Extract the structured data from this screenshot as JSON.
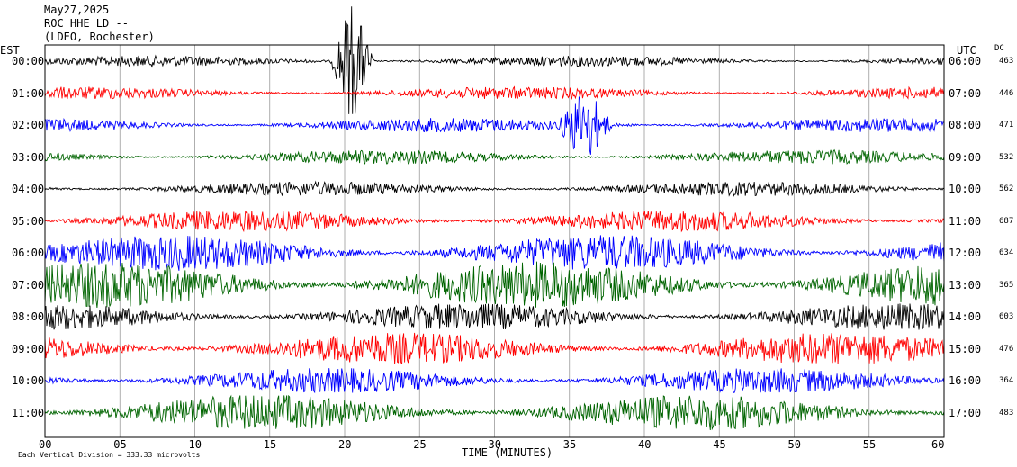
{
  "header": {
    "date": "May27,2025",
    "station": "ROC HHE LD --",
    "network": "(LDEO, Rochester)"
  },
  "left_label": "EST",
  "right_label": "UTC",
  "dc_label": "DC",
  "colors": {
    "cycle": [
      "#000000",
      "#ff0000",
      "#0000ff",
      "#006400"
    ]
  },
  "chart_data": {
    "type": "line",
    "xlabel": "TIME (MINUTES)",
    "xlim": [
      0,
      60
    ],
    "x_ticks": [
      "00",
      "05",
      "10",
      "15",
      "20",
      "25",
      "30",
      "35",
      "40",
      "45",
      "50",
      "55",
      "60"
    ],
    "footer_note": "Each Vertical Division = 333.33 microvolts",
    "rows": [
      {
        "est": "00:00",
        "utc": "06:00",
        "dc": "463",
        "amplitude": 6
      },
      {
        "est": "01:00",
        "utc": "07:00",
        "dc": "446",
        "amplitude": 7
      },
      {
        "est": "02:00",
        "utc": "08:00",
        "dc": "471",
        "amplitude": 8
      },
      {
        "est": "03:00",
        "utc": "09:00",
        "dc": "532",
        "amplitude": 8
      },
      {
        "est": "04:00",
        "utc": "10:00",
        "dc": "562",
        "amplitude": 8
      },
      {
        "est": "05:00",
        "utc": "11:00",
        "dc": "687",
        "amplitude": 12
      },
      {
        "est": "06:00",
        "utc": "12:00",
        "dc": "634",
        "amplitude": 20
      },
      {
        "est": "07:00",
        "utc": "13:00",
        "dc": "365",
        "amplitude": 26
      },
      {
        "est": "08:00",
        "utc": "14:00",
        "dc": "603",
        "amplitude": 15
      },
      {
        "est": "09:00",
        "utc": "15:00",
        "dc": "476",
        "amplitude": 18
      },
      {
        "est": "10:00",
        "utc": "16:00",
        "dc": "364",
        "amplitude": 14
      },
      {
        "est": "11:00",
        "utc": "17:00",
        "dc": "483",
        "amplitude": 20
      }
    ],
    "events": [
      {
        "row": 0,
        "minute": 20.5,
        "amplitude": 70,
        "duration": 1.5
      },
      {
        "row": 2,
        "minute": 36.0,
        "amplitude": 45,
        "duration": 2.0
      }
    ]
  }
}
